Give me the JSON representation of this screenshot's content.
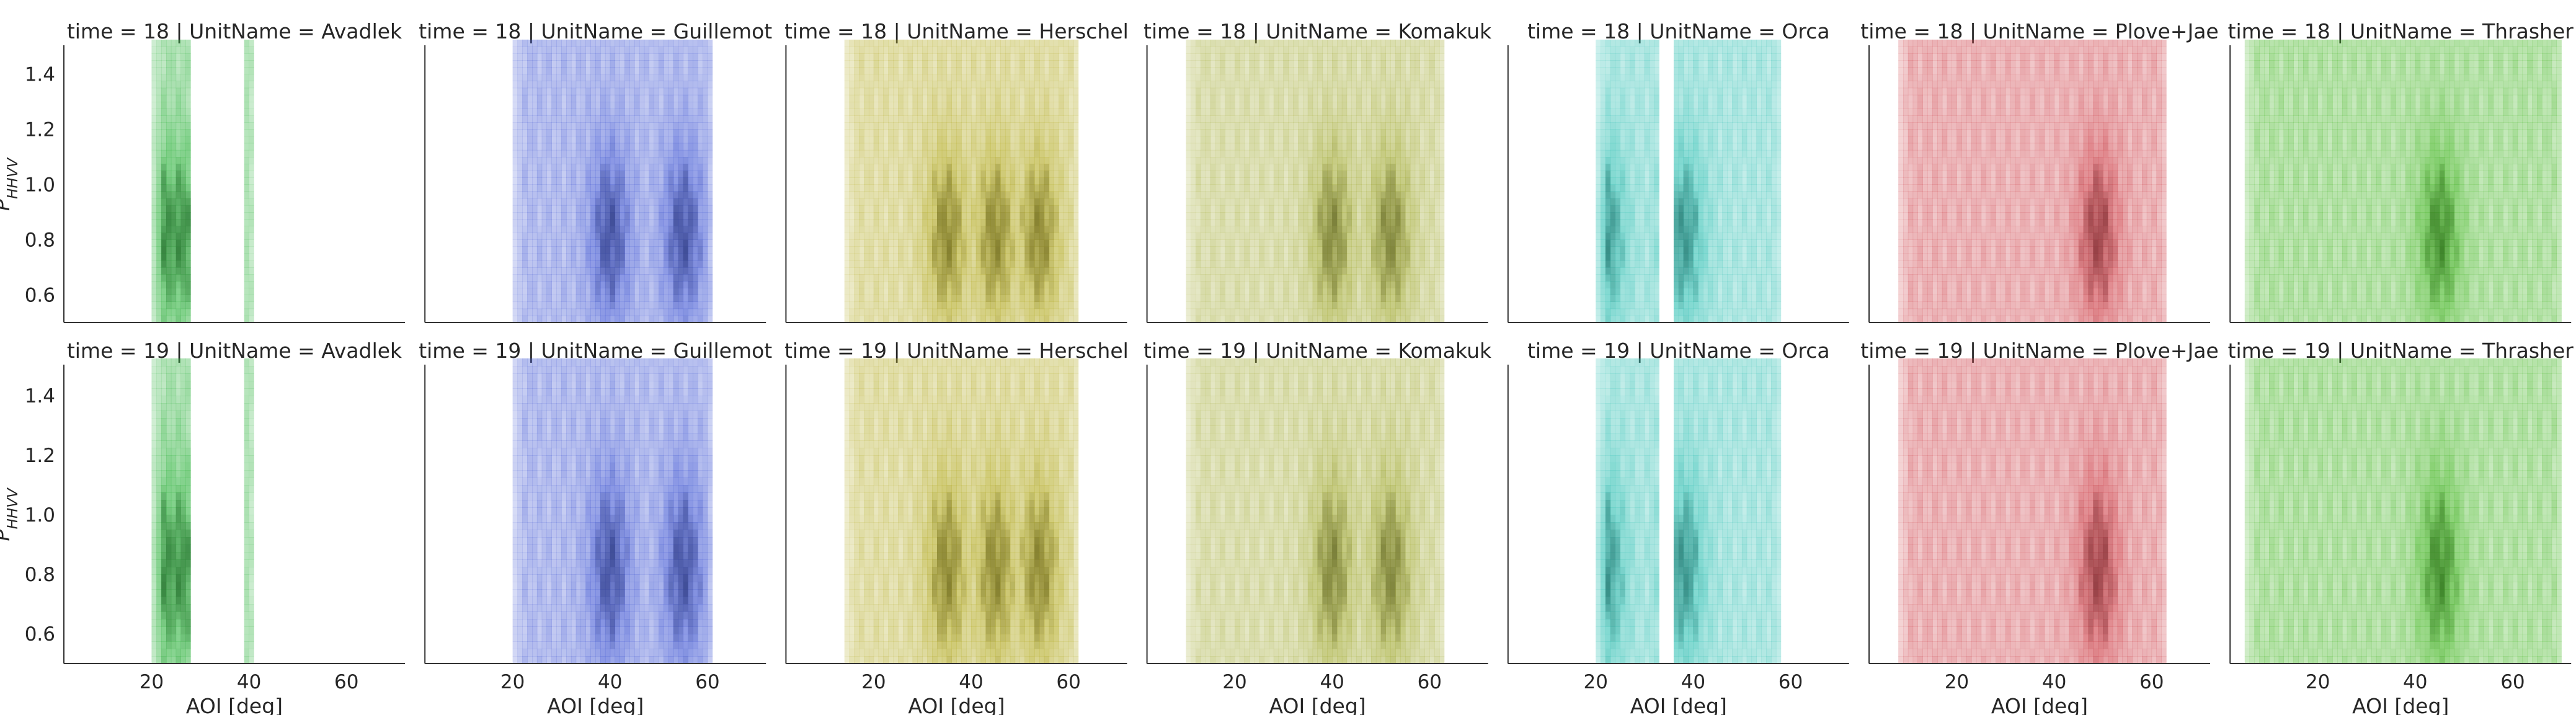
{
  "chart_data": {
    "type": "heatmap",
    "grid": false,
    "xlabel": "AOI [deg]",
    "ylabel": "P_HHVV",
    "xlim": [
      2,
      72
    ],
    "ylim": [
      0.5,
      1.5
    ],
    "xticks": [
      20,
      40,
      60
    ],
    "yticks": [
      0.6,
      0.8,
      1.0,
      1.2,
      1.4
    ],
    "row_label_prefix": "time = ",
    "col_label_prefix": "UnitName = ",
    "rows": [
      18,
      19
    ],
    "units": [
      {
        "name": "Avadlek",
        "color": "#3cb84a",
        "bands": [
          [
            20,
            28
          ],
          [
            39,
            41
          ]
        ],
        "peaks": [
          23,
          26
        ],
        "xlo": 20,
        "xhi": 41
      },
      {
        "name": "Guillemot",
        "color": "#4a5fd6",
        "bands": [],
        "peaks": [
          40,
          55
        ],
        "xlo": 20,
        "xhi": 61
      },
      {
        "name": "Herschel",
        "color": "#b8b030",
        "bands": [],
        "peaks": [
          35,
          45,
          54
        ],
        "xlo": 14,
        "xhi": 62
      },
      {
        "name": "Komakuk",
        "color": "#a8b040",
        "bands": [],
        "peaks": [
          40,
          52
        ],
        "xlo": 10,
        "xhi": 63
      },
      {
        "name": "Orca",
        "color": "#3cc4b8",
        "bands": [
          [
            20,
            33
          ],
          [
            36,
            58
          ]
        ],
        "peaks": [
          22,
          38
        ],
        "xlo": 20,
        "xhi": 58
      },
      {
        "name": "Plove+Jae",
        "color": "#d04850",
        "bands": [],
        "peaks": [
          49
        ],
        "xlo": 8,
        "xhi": 63
      },
      {
        "name": "Thrasher",
        "color": "#48b828",
        "bands": [],
        "peaks": [
          45
        ],
        "xlo": 5,
        "xhi": 70
      }
    ]
  }
}
